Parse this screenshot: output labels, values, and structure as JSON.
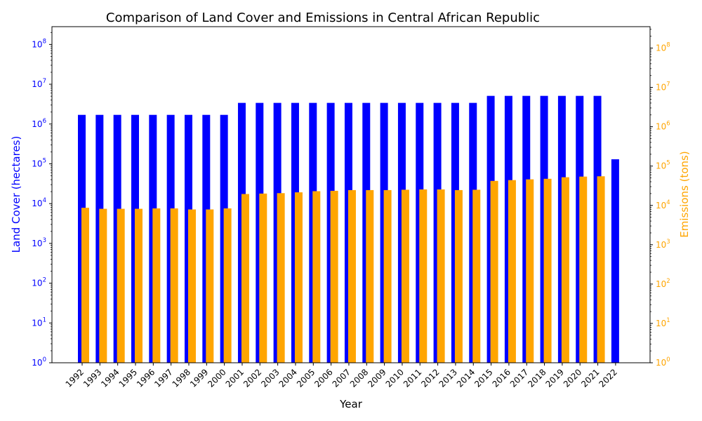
{
  "chart_data": {
    "type": "bar",
    "title": "Comparison of Land Cover and Emissions in Central African Republic",
    "xlabel": "Year",
    "categories": [
      "1992",
      "1993",
      "1994",
      "1995",
      "1996",
      "1997",
      "1998",
      "1999",
      "2000",
      "2001",
      "2002",
      "2003",
      "2004",
      "2005",
      "2006",
      "2007",
      "2008",
      "2009",
      "2010",
      "2011",
      "2012",
      "2013",
      "2014",
      "2015",
      "2016",
      "2017",
      "2018",
      "2019",
      "2020",
      "2021",
      "2022"
    ],
    "y_left": {
      "label": "Land Cover (hectares)",
      "scale": "log",
      "ylim": [
        1,
        280000000
      ],
      "color": "#0000ff",
      "tick_labels": [
        "10^0",
        "10^1",
        "10^2",
        "10^3",
        "10^4",
        "10^5",
        "10^6",
        "10^7",
        "10^8"
      ]
    },
    "y_right": {
      "label": "Emissions (tons)",
      "scale": "log",
      "ylim": [
        1,
        350000000
      ],
      "color": "#ffa500",
      "tick_labels": [
        "10^0",
        "10^1",
        "10^2",
        "10^3",
        "10^4",
        "10^5",
        "10^6",
        "10^7",
        "10^8"
      ]
    },
    "series": [
      {
        "axis": "left",
        "color": "#0000ff",
        "values": [
          1700000,
          1700000,
          1700000,
          1700000,
          1700000,
          1700000,
          1700000,
          1700000,
          1700000,
          3400000,
          3400000,
          3400000,
          3400000,
          3400000,
          3400000,
          3400000,
          3400000,
          3400000,
          3400000,
          3400000,
          3400000,
          3400000,
          3400000,
          5100000,
          5100000,
          5100000,
          5100000,
          5100000,
          5100000,
          5100000,
          130000
        ]
      },
      {
        "axis": "right",
        "color": "#ffa500",
        "values": [
          8700,
          8200,
          8200,
          8200,
          8400,
          8400,
          7900,
          7900,
          8400,
          19500,
          20000,
          20500,
          21500,
          23000,
          23500,
          24500,
          24500,
          24500,
          25000,
          25500,
          25500,
          24500,
          25000,
          42000,
          44000,
          46000,
          47500,
          52000,
          54000,
          55000,
          null
        ]
      }
    ],
    "grid": false
  }
}
